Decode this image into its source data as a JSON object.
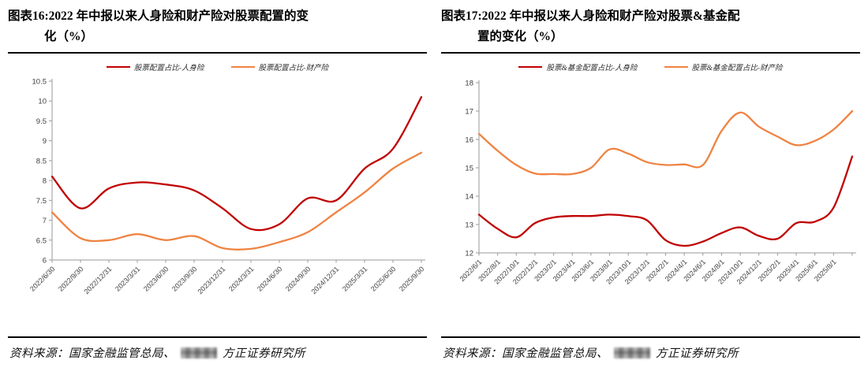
{
  "figures": [
    {
      "title_line1": "图表16:2022 年中报以来人身险和财产险对股票配置的变",
      "title_line2": "化（%）",
      "source_prefix": "资料来源：国家金融监管总局、",
      "source_suffix": "方正证券研究所"
    },
    {
      "title_line1": "图表17:2022 年中报以来人身险和财产险对股票&基金配",
      "title_line2": "置的变化（%）",
      "source_prefix": "资料来源：国家金融监管总局、",
      "source_suffix": "方正证券研究所"
    }
  ],
  "colors": {
    "red_series": "#C00000",
    "orange_series": "#EF8342",
    "axis": "#9a9a9a",
    "rule": "#000000"
  },
  "chart_data": [
    {
      "type": "line",
      "title": "图表16:2022年中报以来人身险和财产险对股票配置的变化（%）",
      "xlabel": "",
      "ylabel": "",
      "ylim": [
        6,
        10.5
      ],
      "yticks": [
        6,
        6.5,
        7,
        7.5,
        8,
        8.5,
        9,
        9.5,
        10,
        10.5
      ],
      "grid": false,
      "legend_position": "top",
      "categories": [
        "2022/6/30",
        "2022/9/30",
        "2022/12/31",
        "2023/3/31",
        "2023/6/30",
        "2023/9/30",
        "2023/12/31",
        "2024/3/31",
        "2024/6/30",
        "2024/9/30",
        "2024/12/31",
        "2025/3/31",
        "2025/6/30",
        "2025/9/30"
      ],
      "series": [
        {
          "name": "股票配置占比-人身险",
          "color": "#C00000",
          "values": [
            8.1,
            7.3,
            7.8,
            7.95,
            7.9,
            7.75,
            7.3,
            6.78,
            6.9,
            7.55,
            7.5,
            8.3,
            8.8,
            10.1
          ]
        },
        {
          "name": "股票配置占比-财产险",
          "color": "#EF8342",
          "values": [
            7.2,
            6.55,
            6.5,
            6.65,
            6.5,
            6.6,
            6.3,
            6.28,
            6.45,
            6.7,
            7.2,
            7.7,
            8.3,
            8.7
          ]
        }
      ]
    },
    {
      "type": "line",
      "title": "图表17:2022年中报以来人身险和财产险对股票&基金配置的变化（%）",
      "xlabel": "",
      "ylabel": "",
      "ylim": [
        12,
        18
      ],
      "yticks": [
        12,
        13,
        14,
        15,
        16,
        17,
        18
      ],
      "grid": false,
      "legend_position": "top",
      "note": "curves extend one unlabeled tick beyond 2025/8/1",
      "categories": [
        "2022/6/1",
        "2022/8/1",
        "2022/10/1",
        "2022/12/1",
        "2023/2/1",
        "2023/4/1",
        "2023/6/1",
        "2023/8/1",
        "2023/10/1",
        "2023/12/1",
        "2024/2/1",
        "2024/4/1",
        "2024/6/1",
        "2024/8/1",
        "2024/10/1",
        "2024/12/1",
        "2025/2/1",
        "2025/4/1",
        "2025/6/1",
        "2025/8/1",
        ""
      ],
      "series": [
        {
          "name": "股票&基金配置占比-人身险",
          "color": "#C00000",
          "values": [
            13.35,
            12.85,
            12.55,
            13.05,
            13.25,
            13.3,
            13.3,
            13.35,
            13.3,
            13.15,
            12.45,
            12.25,
            12.4,
            12.7,
            12.9,
            12.6,
            12.5,
            13.05,
            13.1,
            13.6,
            15.4
          ]
        },
        {
          "name": "股票&基金配置占比-财产险",
          "color": "#EF8342",
          "values": [
            16.2,
            15.6,
            15.1,
            14.8,
            14.78,
            14.78,
            15.0,
            15.65,
            15.5,
            15.2,
            15.1,
            15.12,
            15.1,
            16.3,
            16.95,
            16.45,
            16.1,
            15.8,
            15.95,
            16.35,
            17.0
          ]
        }
      ]
    }
  ]
}
